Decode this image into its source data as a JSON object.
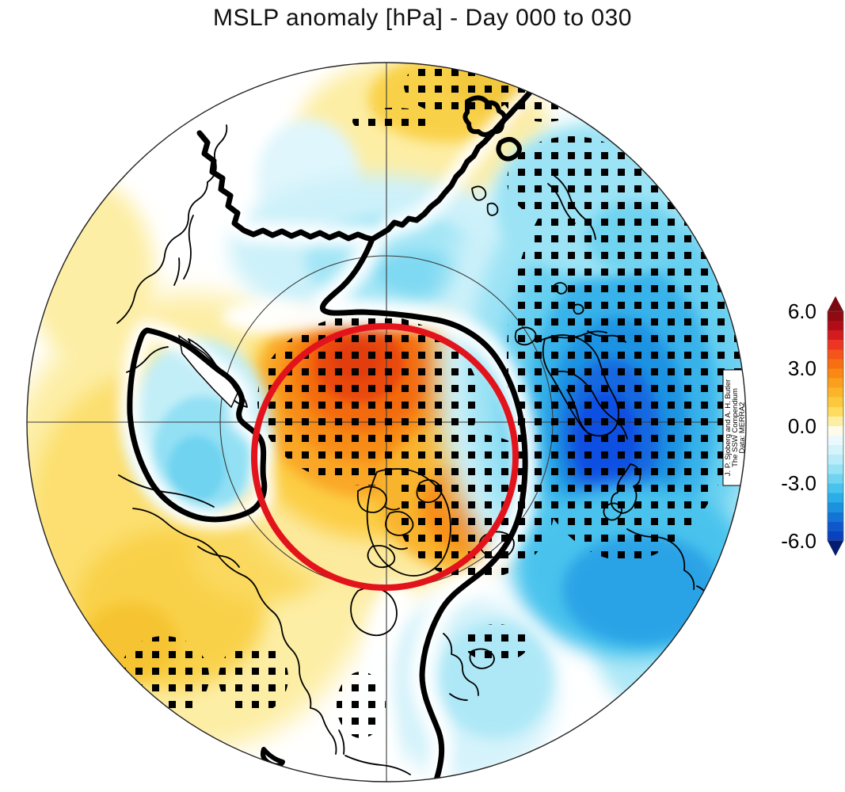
{
  "title": "MSLP anomaly [hPa] - Day 000 to 030",
  "map": {
    "projection": "North Polar Stereographic",
    "graticule": {
      "outer_circle": "30N boundary",
      "inner_circle": "60N latitude circle"
    },
    "red_circle_meaning": "polar cap highlight circle",
    "attribution": {
      "line1": "J. P. Sjoberg and A. H. Butler",
      "line2": "The SSW Compendium",
      "line3": "Data: MERRA2"
    }
  },
  "colorbar": {
    "ticks": [
      "6.0",
      "3.0",
      "0.0",
      "-3.0",
      "-6.0"
    ],
    "min": -6.0,
    "max": 6.0,
    "band_step": 0.5,
    "arrow_top": "#7a0810",
    "arrow_bottom": "#061c6e",
    "band_colors": [
      "#8f0a12",
      "#b00d18",
      "#d31a1e",
      "#ec3523",
      "#f4551a",
      "#f76f10",
      "#f98913",
      "#faa01e",
      "#fbb52b",
      "#fcc93e",
      "#fddc60",
      "#fdeea5",
      "#fefbe8",
      "#eaf9fd",
      "#d5f3fb",
      "#b9ecf8",
      "#97e2f5",
      "#70d4f1",
      "#49c3ed",
      "#2bade8",
      "#1b92df",
      "#1474d6",
      "#0e58cb",
      "#0a41bd"
    ]
  },
  "chart_data": {
    "type": "filled_contour_map",
    "title": "MSLP anomaly [hPa] - Day 000 to 030",
    "variable": "Mean sea level pressure anomaly",
    "units": "hPa",
    "averaging_period": "Day 000 to 030",
    "projection": "North Polar Stereographic, approx 30N-90N, pole at center",
    "colorbar_range": [
      -6,
      6
    ],
    "colorbar_ticks": [
      6.0,
      3.0,
      0.0,
      -3.0,
      -6.0
    ],
    "zero_contour": "thick black meandering line",
    "stippling": "black square stippling marks robust/significant anomalies",
    "red_circle": "red circle highlights the polar cap positive anomaly region (~60N circle)",
    "anomaly_centers": [
      {
        "region": "Arctic polar cap (pole, Canadian Arctic side)",
        "sign": "positive",
        "peak_hPa": 5.0,
        "stippled": true,
        "inside_red_circle": true
      },
      {
        "region": "Scandinavia / Barents Sea / Northern Europe",
        "sign": "negative",
        "peak_hPa": -5.5,
        "stippled": true
      },
      {
        "region": "Northwest Atlantic south of Greenland",
        "sign": "negative",
        "peak_hPa": -3.5,
        "stippled": false
      },
      {
        "region": "Sea of Okhotsk / NW Pacific (closed zero contour)",
        "sign": "negative",
        "peak_hPa": -2.0,
        "stippled": false
      },
      {
        "region": "North Pacific and western North America",
        "sign": "positive",
        "peak_hPa": 2.0,
        "stippled": true
      },
      {
        "region": "Central Asia (top of map)",
        "sign": "positive",
        "peak_hPa": 1.5,
        "stippled": true
      },
      {
        "region": "NW Atlantic near Nova Scotia",
        "sign": "negative",
        "peak_hPa": -3.0,
        "stippled": true
      }
    ],
    "legend_position": "vertical colorbar right side with pointed over/under arrows"
  }
}
